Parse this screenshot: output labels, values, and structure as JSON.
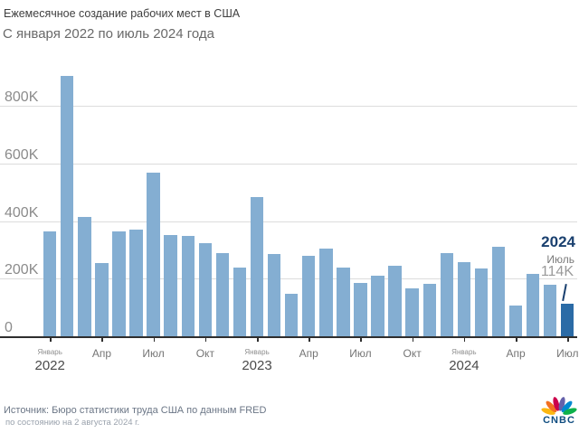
{
  "header": {
    "title": "Ежемесячное создание рабочих мест в США",
    "subtitle": "С января 2022 по июль 2024 года"
  },
  "chart_data": {
    "type": "bar",
    "title": "Ежемесячное создание рабочих мест в США",
    "subtitle": "С января 2022 по июль 2024 года",
    "unit": "тыс. рабочих мест (K)",
    "categories": [
      "Янв 2022",
      "Фев 2022",
      "Мар 2022",
      "Апр 2022",
      "Май 2022",
      "Июн 2022",
      "Июл 2022",
      "Авг 2022",
      "Сен 2022",
      "Окт 2022",
      "Ноя 2022",
      "Дек 2022",
      "Янв 2023",
      "Фев 2023",
      "Мар 2023",
      "Апр 2023",
      "Май 2023",
      "Июн 2023",
      "Июл 2023",
      "Авг 2023",
      "Сен 2023",
      "Окт 2023",
      "Ноя 2023",
      "Дек 2023",
      "Янв 2024",
      "Фев 2024",
      "Мар 2024",
      "Апр 2024",
      "Май 2024",
      "Июн 2024",
      "Июл 2024"
    ],
    "values": [
      364,
      904,
      414,
      254,
      364,
      370,
      568,
      352,
      350,
      324,
      290,
      239,
      482,
      287,
      146,
      278,
      303,
      240,
      184,
      210,
      246,
      165,
      182,
      290,
      256,
      236,
      310,
      108,
      216,
      179,
      114
    ],
    "ylim": [
      0,
      900
    ],
    "yticks": [
      0,
      200,
      400,
      600,
      800
    ],
    "ytick_labels": [
      "0",
      "200K",
      "400K",
      "600K",
      "800K"
    ],
    "grid": true,
    "legend": null,
    "highlight_index": 30,
    "x_ticks": [
      {
        "index": 0,
        "label": "Январь",
        "year": "2022"
      },
      {
        "index": 3,
        "label": "Апр"
      },
      {
        "index": 6,
        "label": "Июл"
      },
      {
        "index": 9,
        "label": "Окт"
      },
      {
        "index": 12,
        "label": "Январь",
        "year": "2023"
      },
      {
        "index": 15,
        "label": "Апр"
      },
      {
        "index": 18,
        "label": "Июл"
      },
      {
        "index": 21,
        "label": "Окт"
      },
      {
        "index": 24,
        "label": "Январь",
        "year": "2024"
      },
      {
        "index": 27,
        "label": "Апр"
      },
      {
        "index": 30,
        "label": "Июл"
      }
    ],
    "colors": {
      "bar": "#84aed2",
      "bar_highlight": "#2b6ba6",
      "gridline": "#dcdcdc",
      "axis": "#2e2e2e",
      "annotation": "#1a406f"
    }
  },
  "annotation": {
    "year": "2024",
    "month": "Июль",
    "value": "114K"
  },
  "footer": {
    "source": "Источник: Бюро статистики труда США по данным FRED",
    "as_of": "по состоянию на 2 августа 2024 г."
  },
  "branding": {
    "logo_text": "CNBC",
    "peacock_colors": [
      "#fcb711",
      "#f37021",
      "#cc004c",
      "#6460aa",
      "#0089d0",
      "#0db14b"
    ]
  }
}
